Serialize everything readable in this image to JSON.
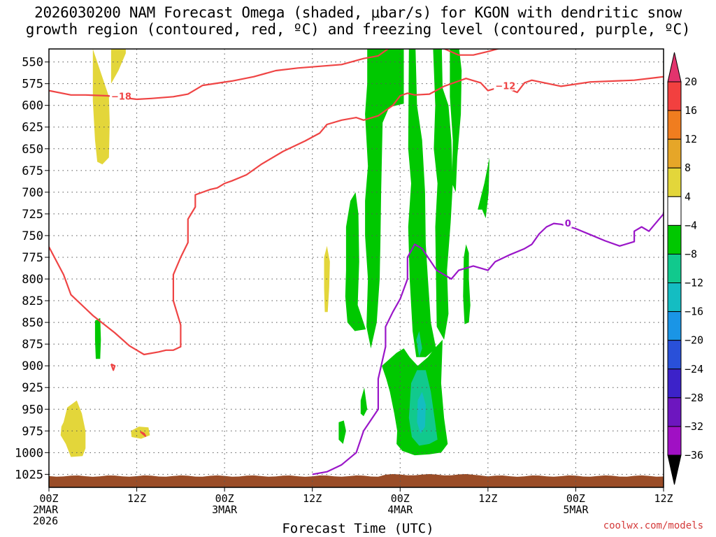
{
  "title": {
    "line1": "2026030200 NAM Forecast Omega (shaded, μbar/s) for KGON with dendritic snow",
    "line2": "growth region (contoured, red, ºC) and freezing level (contoured, purple, ºC)"
  },
  "credit": "coolwx.com/models",
  "chart_data": {
    "type": "time-height",
    "title": "2026030200 NAM Forecast Omega (shaded, μbar/s) for KGON with dendritic snow growth region (contoured, red, ºC) and freezing level (contoured, purple, ºC)",
    "xlabel": "Forecast Time (UTC)",
    "ylabel": "",
    "x_range_hours": [
      0,
      84
    ],
    "y_range_mb": [
      535,
      1040
    ],
    "y_inverted": true,
    "grid": true,
    "y_ticks": [
      "550",
      "575",
      "600",
      "625",
      "650",
      "675",
      "700",
      "725",
      "750",
      "775",
      "800",
      "825",
      "850",
      "875",
      "900",
      "925",
      "950",
      "975",
      "1000",
      "1025"
    ],
    "x_ticks": [
      {
        "hour": 0,
        "lines": [
          "00Z",
          "2MAR",
          "2026"
        ]
      },
      {
        "hour": 12,
        "lines": [
          "12Z"
        ]
      },
      {
        "hour": 24,
        "lines": [
          "00Z",
          "3MAR"
        ]
      },
      {
        "hour": 36,
        "lines": [
          "12Z"
        ]
      },
      {
        "hour": 48,
        "lines": [
          "00Z",
          "4MAR"
        ]
      },
      {
        "hour": 60,
        "lines": [
          "12Z"
        ]
      },
      {
        "hour": 72,
        "lines": [
          "00Z",
          "5MAR"
        ]
      },
      {
        "hour": 84,
        "lines": [
          "12Z"
        ]
      }
    ],
    "colorbar": {
      "labels": [
        "20",
        "16",
        "12",
        "8",
        "4",
        "-4",
        "-8",
        "-12",
        "-16",
        "-20",
        "-24",
        "-28",
        "-32",
        "-36"
      ],
      "colors": [
        "#e2336d",
        "#f2403f",
        "#f07d1f",
        "#e6a628",
        "#e3d63a",
        "#ffffff",
        "#00c800",
        "#11c98d",
        "#14bdc2",
        "#1a95e6",
        "#2950d9",
        "#3c22c9",
        "#6d16bf",
        "#a010c4",
        "#9a9a9a",
        "#000000"
      ]
    },
    "series": [
      {
        "name": "-18",
        "color": "#ef4444",
        "points": [
          [
            0,
            583
          ],
          [
            3,
            588
          ],
          [
            5,
            588
          ],
          [
            8,
            589
          ],
          [
            12,
            593
          ],
          [
            14,
            592
          ],
          [
            17,
            590
          ],
          [
            19,
            587
          ],
          [
            21,
            577
          ],
          [
            25,
            572
          ],
          [
            28,
            567
          ],
          [
            31,
            560
          ],
          [
            34,
            557
          ],
          [
            37,
            555
          ],
          [
            40,
            553
          ],
          [
            43,
            546
          ],
          [
            45,
            543
          ],
          [
            47,
            531
          ],
          [
            53,
            531
          ],
          [
            56,
            542
          ],
          [
            58,
            542
          ],
          [
            60,
            538
          ],
          [
            63,
            531
          ],
          [
            66,
            527
          ],
          [
            71,
            523
          ],
          [
            75,
            519
          ],
          [
            76,
            521
          ],
          [
            79,
            514
          ],
          [
            80,
            513
          ],
          [
            83,
            514
          ],
          [
            84,
            516
          ],
          [
            85,
            520
          ],
          [
            87,
            515
          ]
        ],
        "label_at": [
          8.5,
          591
        ]
      },
      {
        "name": "-12",
        "color": "#ef4444",
        "points": [
          [
            0,
            763
          ],
          [
            2,
            795
          ],
          [
            3,
            818
          ],
          [
            6,
            842
          ],
          [
            9,
            862
          ],
          [
            11,
            877
          ],
          [
            13,
            887
          ],
          [
            15,
            884
          ],
          [
            16,
            882
          ],
          [
            17,
            882
          ],
          [
            18,
            878
          ],
          [
            18,
            853
          ],
          [
            17,
            825
          ],
          [
            17,
            795
          ],
          [
            18,
            775
          ],
          [
            19,
            758
          ],
          [
            19,
            731
          ],
          [
            20,
            717
          ],
          [
            20,
            703
          ],
          [
            22,
            697
          ],
          [
            23,
            695
          ],
          [
            24,
            690
          ],
          [
            25,
            687
          ],
          [
            27,
            680
          ],
          [
            29,
            668
          ],
          [
            32,
            653
          ],
          [
            35,
            641
          ],
          [
            37,
            632
          ],
          [
            38,
            622
          ],
          [
            40,
            617
          ],
          [
            42,
            614
          ],
          [
            43,
            617
          ],
          [
            45,
            612
          ],
          [
            47,
            600
          ],
          [
            48,
            589
          ],
          [
            49,
            586
          ],
          [
            50,
            588
          ],
          [
            52,
            587
          ],
          [
            54,
            578
          ],
          [
            57,
            569
          ],
          [
            59,
            574
          ],
          [
            60,
            583
          ],
          [
            62,
            578
          ],
          [
            64,
            585
          ],
          [
            65,
            574
          ],
          [
            66,
            571
          ],
          [
            70,
            578
          ],
          [
            74,
            573
          ],
          [
            80,
            571
          ],
          [
            83,
            568
          ],
          [
            84,
            567
          ]
        ],
        "label_at": [
          61,
          579
        ]
      },
      {
        "name": "-12b",
        "color": "#ef4444",
        "points": [
          [
            8.5,
            898
          ],
          [
            9,
            900
          ],
          [
            8.8,
            905
          ],
          [
            8.5,
            898
          ]
        ]
      },
      {
        "name": "-12c",
        "color": "#ef4444",
        "points": [
          [
            12.5,
            976
          ],
          [
            13,
            978
          ],
          [
            13.2,
            981
          ],
          [
            12.5,
            976
          ]
        ]
      },
      {
        "name": "0",
        "color": "#9a16c8",
        "points": [
          [
            36,
            1025
          ],
          [
            38,
            1022
          ],
          [
            40,
            1014
          ],
          [
            42,
            1000
          ],
          [
            43,
            975
          ],
          [
            45,
            950
          ],
          [
            45,
            915
          ],
          [
            46,
            878
          ],
          [
            46,
            855
          ],
          [
            47,
            838
          ],
          [
            48,
            823
          ],
          [
            49,
            800
          ],
          [
            49,
            775
          ],
          [
            50,
            760
          ],
          [
            51,
            765
          ],
          [
            53,
            790
          ],
          [
            55,
            800
          ],
          [
            56,
            790
          ],
          [
            58,
            785
          ],
          [
            60,
            790
          ],
          [
            61,
            780
          ],
          [
            63,
            772
          ],
          [
            65,
            765
          ],
          [
            66,
            760
          ],
          [
            67,
            748
          ],
          [
            68,
            740
          ],
          [
            69,
            736
          ],
          [
            70,
            737
          ],
          [
            72,
            742
          ],
          [
            74,
            749
          ],
          [
            76,
            756
          ],
          [
            78,
            762
          ],
          [
            80,
            757
          ],
          [
            80,
            745
          ],
          [
            81,
            740
          ],
          [
            82,
            745
          ],
          [
            83,
            735
          ],
          [
            84,
            725
          ],
          [
            84,
            723
          ]
        ],
        "label_at": [
          70.5,
          737
        ]
      }
    ],
    "shaded_regions": [
      {
        "range": "4 to 8",
        "color": "#e3d63a",
        "note": "weak subsidence"
      },
      {
        "range": "-4 to -8",
        "color": "#00c800",
        "note": "ascent"
      },
      {
        "range": "-8 to -12",
        "color": "#11c98d",
        "note": "stronger ascent"
      },
      {
        "range": "-12 to -16",
        "color": "#14bdc2",
        "note": "strongest ascent near 00Z 4MAR"
      }
    ],
    "terrain": {
      "color": "#9a4d28",
      "top_mb": 1027
    }
  }
}
